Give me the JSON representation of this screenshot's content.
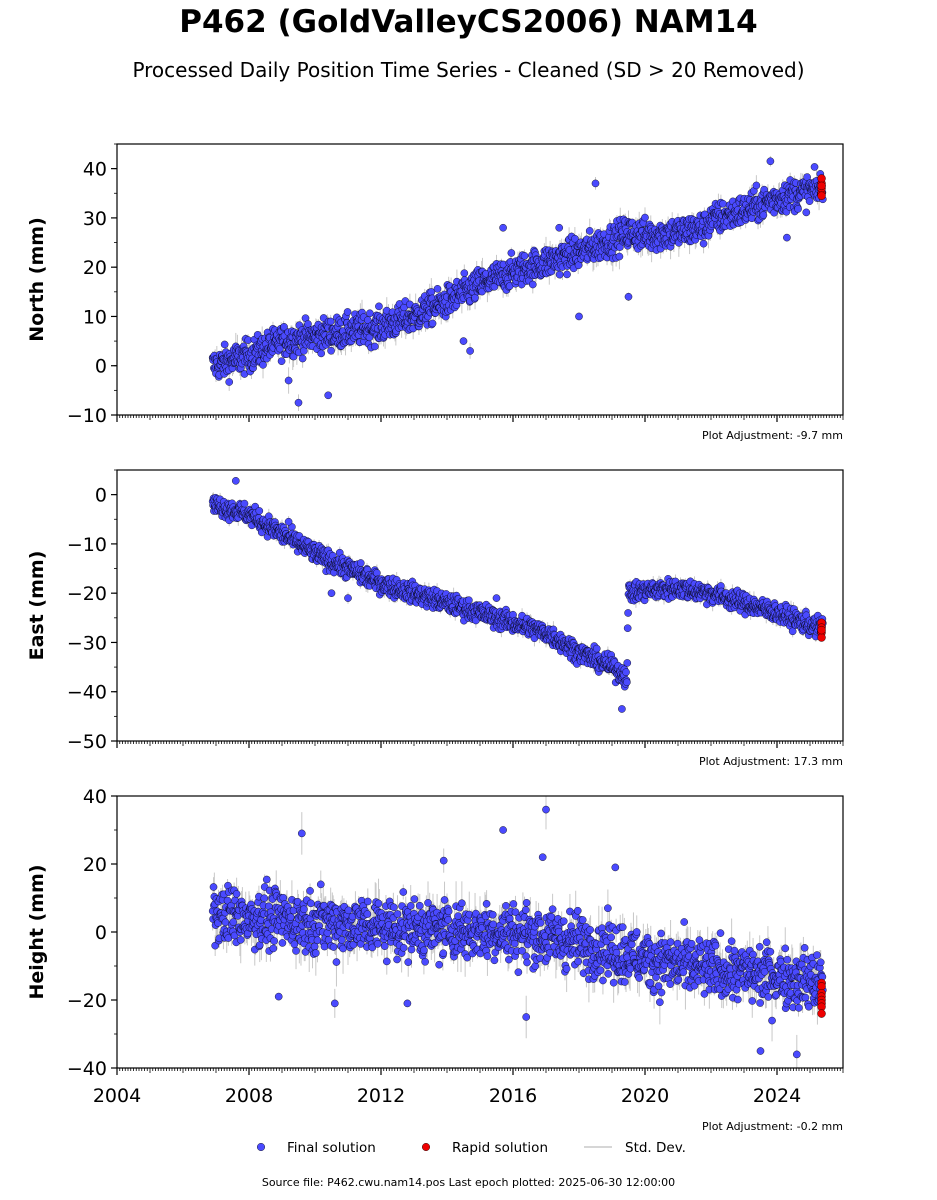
{
  "title": "P462 (GoldValleyCS2006) NAM14",
  "subtitle": "Processed Daily Position Time Series - Cleaned (SD > 20 Removed)",
  "footer": "Source file: P462.cwu.nam14.pos  Last epoch plotted: 2025-06-30 12:00:00",
  "colors": {
    "final": "#4a4aff",
    "rapid": "#ee0000",
    "stddev": "#c8c8c8"
  },
  "chart_data": [
    {
      "type": "scatter",
      "id": "north",
      "ylabel": "North (mm)",
      "xlim": [
        2004,
        2026
      ],
      "ylim": [
        -10,
        45
      ],
      "yticks": [
        -10,
        0,
        10,
        20,
        30,
        40
      ],
      "adjustment": "Plot Adjustment: -9.7 mm",
      "trend": [
        [
          2006.9,
          0
        ],
        [
          2008.0,
          2
        ],
        [
          2009.0,
          5
        ],
        [
          2010.0,
          6
        ],
        [
          2011.0,
          7
        ],
        [
          2012.0,
          8
        ],
        [
          2013.0,
          10
        ],
        [
          2014.0,
          13
        ],
        [
          2015.0,
          16.5
        ],
        [
          2016.0,
          19
        ],
        [
          2017.0,
          21
        ],
        [
          2018.0,
          23
        ],
        [
          2019.0,
          25.5
        ],
        [
          2019.5,
          27
        ],
        [
          2020.0,
          26.5
        ],
        [
          2021.0,
          27
        ],
        [
          2021.8,
          28
        ],
        [
          2022.0,
          29.5
        ],
        [
          2023.0,
          31.5
        ],
        [
          2024.0,
          34
        ],
        [
          2025.0,
          35.5
        ],
        [
          2025.4,
          36
        ]
      ],
      "scatter": 2.3,
      "outliers": [
        [
          2018.5,
          37
        ],
        [
          2015.7,
          28
        ],
        [
          2009.5,
          -7.5
        ],
        [
          2010.4,
          -6
        ],
        [
          2009.2,
          -3
        ],
        [
          2014.5,
          5
        ],
        [
          2014.7,
          3
        ],
        [
          2018.0,
          10
        ],
        [
          2019.5,
          14
        ],
        [
          2017.4,
          28
        ],
        [
          2023.8,
          41.5
        ],
        [
          2024.3,
          26
        ]
      ],
      "rapid": {
        "x": 2025.35,
        "y": [
          35,
          36,
          37,
          38,
          34.5,
          36.5
        ]
      },
      "legend": {
        "final": "Final solution",
        "rapid": "Rapid solution",
        "stddev": "Std. Dev."
      }
    },
    {
      "type": "scatter",
      "id": "east",
      "ylabel": "East (mm)",
      "xlim": [
        2004,
        2026
      ],
      "ylim": [
        -50,
        5
      ],
      "yticks": [
        -50,
        -40,
        -30,
        -20,
        -10,
        0
      ],
      "adjustment": "Plot Adjustment: 17.3 mm",
      "trend": [
        [
          2006.9,
          -2
        ],
        [
          2008.0,
          -4
        ],
        [
          2009.0,
          -8
        ],
        [
          2010.0,
          -12
        ],
        [
          2011.0,
          -15
        ],
        [
          2012.0,
          -18
        ],
        [
          2013.0,
          -20
        ],
        [
          2014.0,
          -22
        ],
        [
          2015.0,
          -24
        ],
        [
          2016.0,
          -26
        ],
        [
          2017.0,
          -28
        ],
        [
          2018.0,
          -32
        ],
        [
          2019.0,
          -35
        ],
        [
          2019.45,
          -37
        ],
        [
          2019.5,
          -20
        ],
        [
          2020.0,
          -19.5
        ],
        [
          2021.0,
          -19
        ],
        [
          2022.0,
          -20
        ],
        [
          2023.0,
          -22
        ],
        [
          2024.0,
          -24
        ],
        [
          2025.0,
          -26.5
        ],
        [
          2025.4,
          -27
        ]
      ],
      "scatter": 1.4,
      "outliers": [
        [
          2007.6,
          2.8
        ],
        [
          2019.3,
          -43.5
        ],
        [
          2009.2,
          -5.5
        ],
        [
          2015.5,
          -21
        ],
        [
          2011.0,
          -21
        ],
        [
          2010.5,
          -20
        ]
      ],
      "rapid": {
        "x": 2025.35,
        "y": [
          -26,
          -27,
          -28,
          -29,
          -27.5
        ]
      }
    },
    {
      "type": "scatter",
      "id": "height",
      "ylabel": "Height (mm)",
      "xlim": [
        2004,
        2026
      ],
      "ylim": [
        -40,
        40
      ],
      "xticks": [
        2004,
        2008,
        2012,
        2016,
        2020,
        2024
      ],
      "yticks": [
        -40,
        -20,
        0,
        20,
        40
      ],
      "adjustment": "Plot Adjustment: -0.2 mm",
      "trend": [
        [
          2006.9,
          5
        ],
        [
          2010.0,
          3
        ],
        [
          2013.0,
          1
        ],
        [
          2016.0,
          0
        ],
        [
          2018.0,
          -3
        ],
        [
          2020.0,
          -8
        ],
        [
          2022.0,
          -11
        ],
        [
          2024.0,
          -13
        ],
        [
          2025.4,
          -15
        ]
      ],
      "scatter": 6,
      "outliers": [
        [
          2017.0,
          36
        ],
        [
          2015.7,
          30
        ],
        [
          2009.6,
          29
        ],
        [
          2016.9,
          22
        ],
        [
          2013.9,
          21
        ],
        [
          2019.1,
          19
        ],
        [
          2024.6,
          -36
        ],
        [
          2023.5,
          -35
        ],
        [
          2016.4,
          -25
        ],
        [
          2012.8,
          -21
        ],
        [
          2010.6,
          -21
        ],
        [
          2008.9,
          -19
        ]
      ],
      "rapid": {
        "x": 2025.35,
        "y": [
          -15,
          -16,
          -18,
          -19,
          -20,
          -21,
          -22,
          -24
        ]
      }
    }
  ]
}
